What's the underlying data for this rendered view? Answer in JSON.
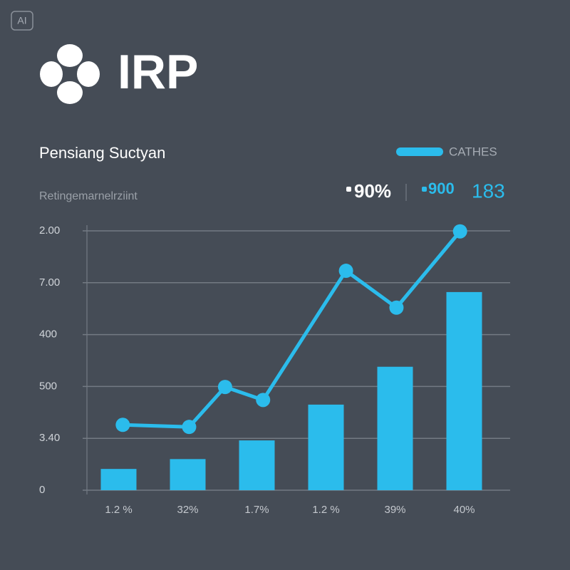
{
  "badge": "AI",
  "logo": "IRP",
  "chart_data": {
    "type": "bar-line",
    "title": "Pensiang  Suctyan",
    "subtitle": "Retingemarnelrziint",
    "stats": [
      "90%",
      "900",
      "183"
    ],
    "categories": [
      "1.2 %",
      "32%",
      "1.7%",
      "1.2 %",
      "39%",
      "40%"
    ],
    "ylim": [
      0,
      5
    ],
    "yticks": [
      {
        "value": 0,
        "label": "0"
      },
      {
        "value": 1,
        "label": "3.40"
      },
      {
        "value": 2,
        "label": "500"
      },
      {
        "value": 3,
        "label": "400"
      },
      {
        "value": 4,
        "label": "7.00"
      },
      {
        "value": 5,
        "label": "2.00"
      }
    ],
    "grid": true,
    "series": [
      {
        "type": "bar",
        "color": "#2bbcec",
        "values": [
          0.41,
          0.6,
          0.96,
          1.65,
          2.38,
          3.82
        ]
      },
      {
        "type": "line",
        "name": "CATHES",
        "color": "#2bbcec",
        "x": [
          0.06,
          1.02,
          1.54,
          2.09,
          3.29,
          4.02,
          4.94
        ],
        "values": [
          1.26,
          1.22,
          1.99,
          1.74,
          4.23,
          3.52,
          4.99
        ]
      }
    ]
  }
}
